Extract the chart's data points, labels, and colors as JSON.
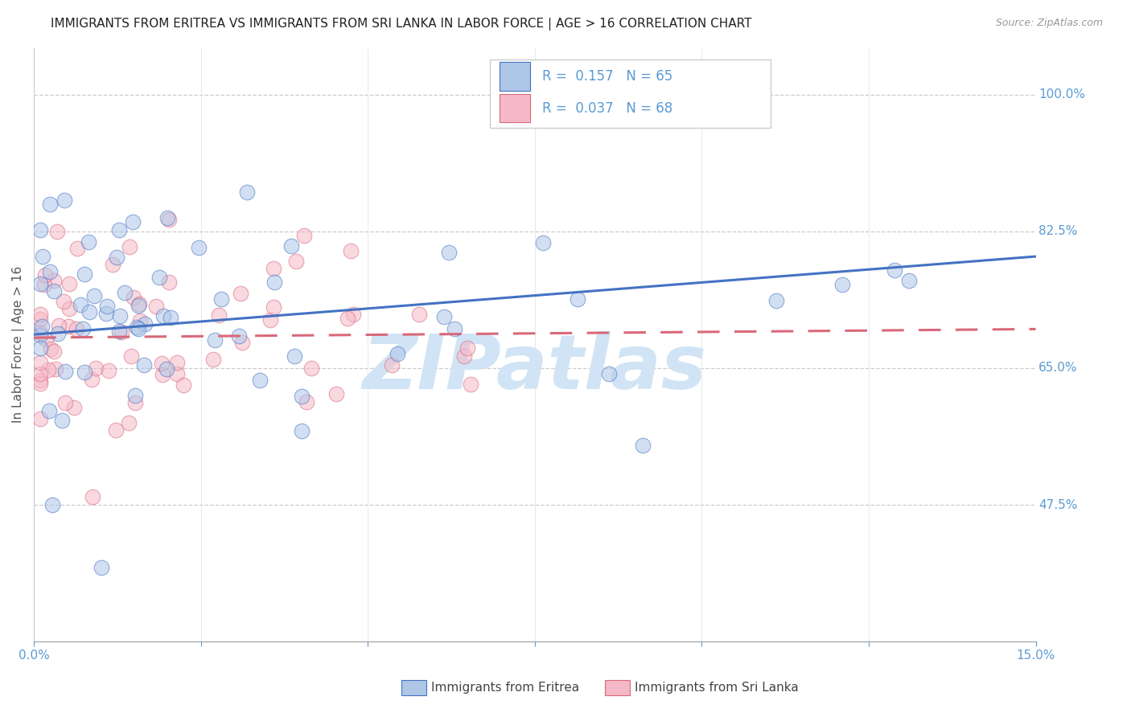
{
  "title": "IMMIGRANTS FROM ERITREA VS IMMIGRANTS FROM SRI LANKA IN LABOR FORCE | AGE > 16 CORRELATION CHART",
  "source": "Source: ZipAtlas.com",
  "ylabel": "In Labor Force | Age > 16",
  "xlim": [
    0.0,
    0.15
  ],
  "ylim": [
    0.3,
    1.06
  ],
  "ytick_positions": [
    0.475,
    0.65,
    0.825,
    1.0
  ],
  "ytick_labels": [
    "47.5%",
    "65.0%",
    "82.5%",
    "100.0%"
  ],
  "color_eritrea": "#aec6e8",
  "color_srilanka": "#f5b8c8",
  "line_color_eritrea": "#4472c4",
  "line_color_srilanka": "#d9687a",
  "watermark": "ZIPatlas",
  "watermark_color": "#d0e4f5",
  "title_color": "#222222",
  "axis_color": "#5b9bd5",
  "legend_text_color": "#5b9bd5",
  "legend_label1": "R =  0.157   N = 65",
  "legend_label2": "R =  0.037   N = 68",
  "bottom_label1": "Immigrants from Eritrea",
  "bottom_label2": "Immigrants from Sri Lanka",
  "eri_trend": [
    0.693,
    0.793
  ],
  "sri_trend": [
    0.689,
    0.7
  ],
  "figsize": [
    14.06,
    8.92
  ],
  "dpi": 100
}
